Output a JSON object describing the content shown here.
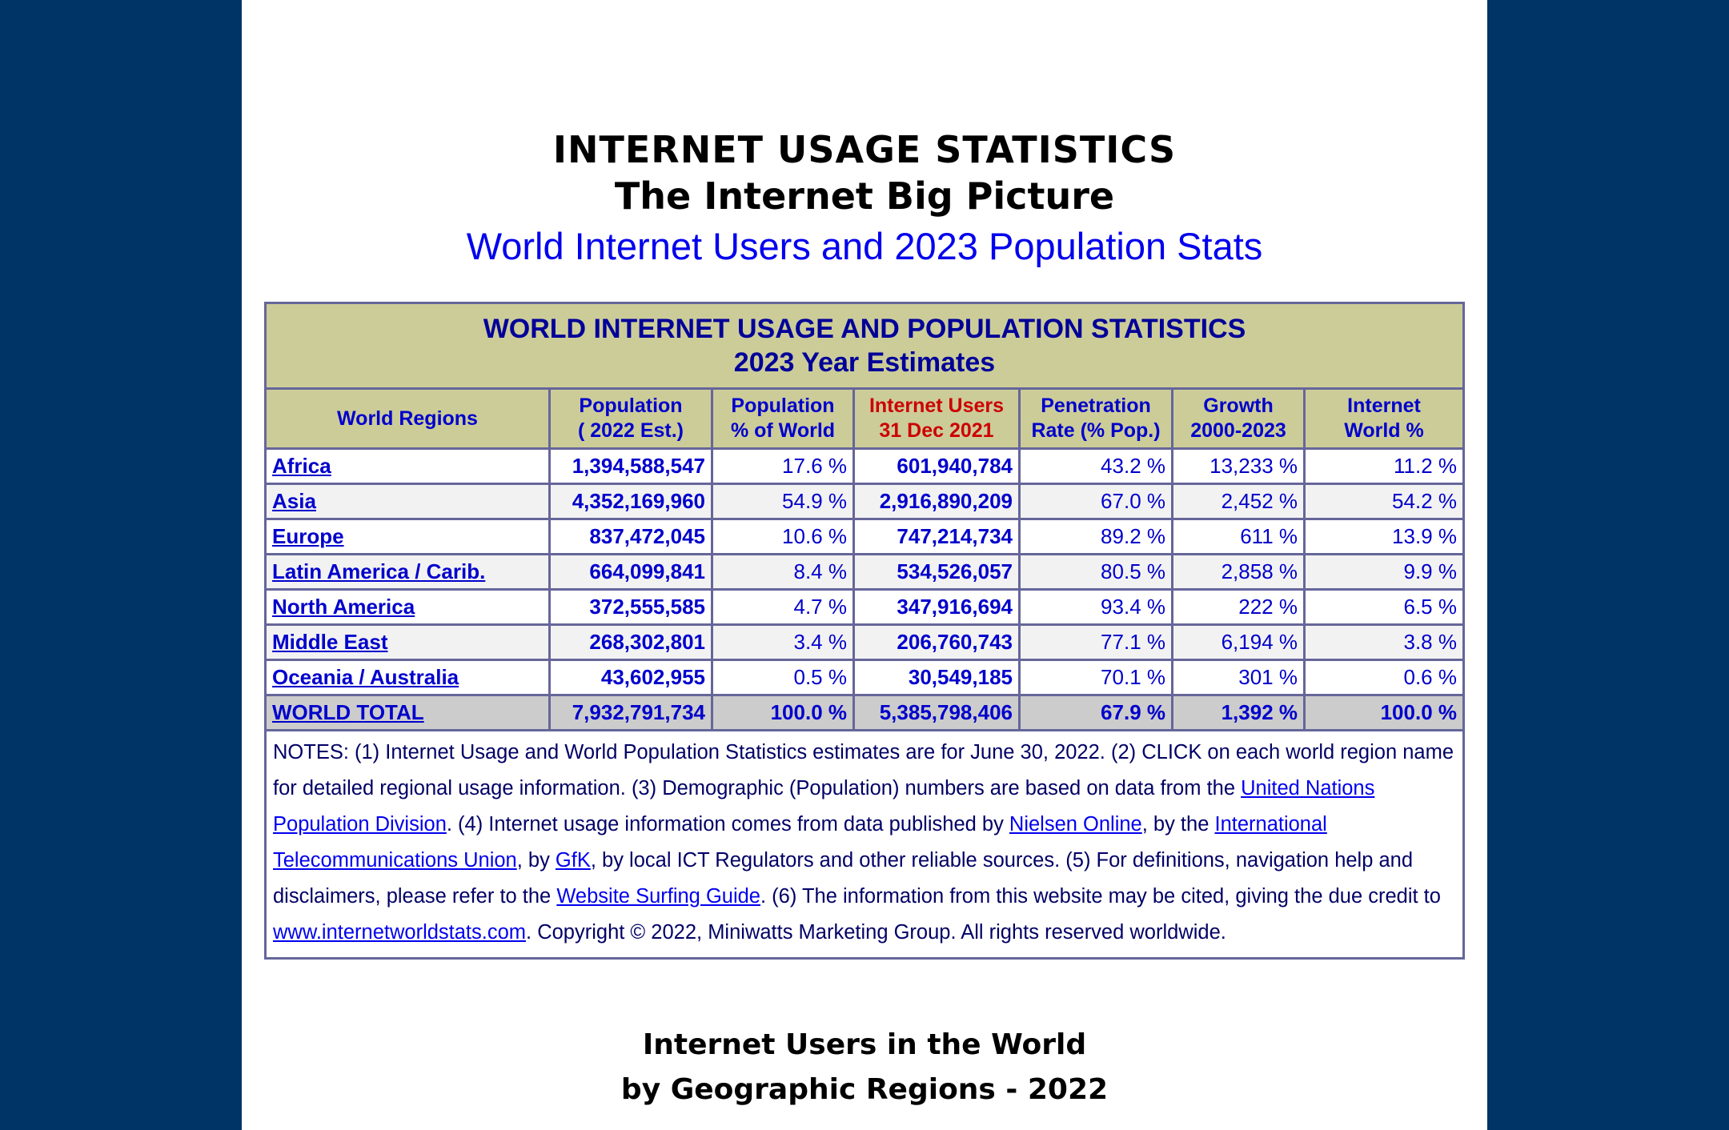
{
  "header": {
    "title_1": "INTERNET USAGE STATISTICS",
    "title_2": "The Internet Big Picture",
    "subtitle": "World Internet Users and 2023 Population Stats"
  },
  "table": {
    "caption_1": "WORLD INTERNET USAGE AND POPULATION STATISTICS",
    "caption_2": "2023 Year Estimates",
    "columns": [
      {
        "l1": "World Regions",
        "l2": ""
      },
      {
        "l1": "Population",
        "l2": "( 2022 Est.)"
      },
      {
        "l1": "Population",
        "l2": "% of World"
      },
      {
        "l1": "Internet Users",
        "l2": "31 Dec 2021"
      },
      {
        "l1": "Penetration",
        "l2": "Rate (% Pop.)"
      },
      {
        "l1": "Growth",
        "l2": "2000-2023"
      },
      {
        "l1": "Internet",
        "l2": "World %"
      }
    ],
    "rows": [
      [
        "Africa",
        "1,394,588,547",
        "17.6 %",
        "601,940,784",
        "43.2 %",
        "13,233 %",
        "11.2 %"
      ],
      [
        "Asia",
        "4,352,169,960",
        "54.9 %",
        "2,916,890,209",
        "67.0 %",
        "2,452 %",
        "54.2 %"
      ],
      [
        "Europe",
        "837,472,045",
        "10.6 %",
        "747,214,734",
        "89.2 %",
        "611 %",
        "13.9 %"
      ],
      [
        "Latin America / Carib.",
        "664,099,841",
        "8.4 %",
        "534,526,057",
        "80.5 %",
        "2,858 %",
        "9.9 %"
      ],
      [
        "North America",
        "372,555,585",
        "4.7 %",
        "347,916,694",
        "93.4 %",
        "222 %",
        "6.5 %"
      ],
      [
        "Middle East",
        "268,302,801",
        "3.4 %",
        "206,760,743",
        "77.1 %",
        "6,194 %",
        "3.8 %"
      ],
      [
        "Oceania / Australia",
        "43,602,955",
        "0.5 %",
        "30,549,185",
        "70.1 %",
        "301 %",
        "0.6 %"
      ]
    ],
    "total": [
      "WORLD TOTAL",
      "7,932,791,734",
      "100.0 %",
      "5,385,798,406",
      "67.9 %",
      "1,392 %",
      "100.0 %"
    ]
  },
  "notes": {
    "p1": "NOTES: (1) Internet Usage and World Population Statistics estimates are for June 30, 2022. (2) CLICK on each world region name for detailed regional usage information. (3) Demographic (Population) numbers are based on data from the ",
    "link_un": "United Nations Population Division",
    "p2": ". (4) Internet usage information comes from data published by ",
    "link_nielsen": "Nielsen Online",
    "p3": ", by the ",
    "link_itu": "International Telecommunications Union",
    "p4": ", by ",
    "link_gfk": "GfK",
    "p5": ", by local ICT Regulators and other reliable sources. (5) For definitions, navigation help and disclaimers, please refer to the ",
    "link_guide": "Website Surfing Guide",
    "p6": ". (6) The information from this website may be cited, giving the due credit to ",
    "link_site": "www.internetworldstats.com",
    "p7": ". Copyright © 2022, Miniwatts Marketing Group. All rights reserved worldwide."
  },
  "chart_heading": {
    "line_1": "Internet Users in the World",
    "line_2": "by Geographic Regions -  2022"
  }
}
